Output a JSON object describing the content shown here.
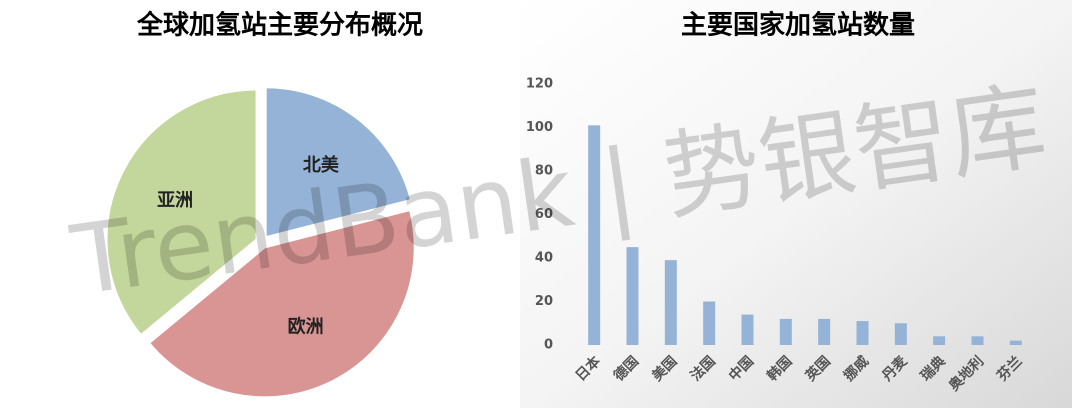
{
  "watermark": "TrendBank | 势银智库",
  "chart_data": [
    {
      "type": "pie",
      "title": "全球加氢站主要分布概况",
      "categories": [
        "北美",
        "欧洲",
        "亚洲"
      ],
      "values": [
        21,
        43,
        36
      ],
      "colors": [
        "#95b3d7",
        "#d99594",
        "#c3d69b"
      ]
    },
    {
      "type": "bar",
      "title": "主要国家加氢站数量",
      "categories": [
        "日本",
        "德国",
        "美国",
        "法国",
        "中国",
        "韩国",
        "英国",
        "挪威",
        "丹麦",
        "瑞典",
        "奥地利",
        "芬兰"
      ],
      "values": [
        101,
        45,
        39,
        20,
        14,
        12,
        12,
        11,
        10,
        4,
        4,
        2
      ],
      "color": "#95b3d7",
      "ylim": [
        0,
        120
      ],
      "yticks": [
        0,
        20,
        40,
        60,
        80,
        100,
        120
      ],
      "grid": false
    }
  ]
}
